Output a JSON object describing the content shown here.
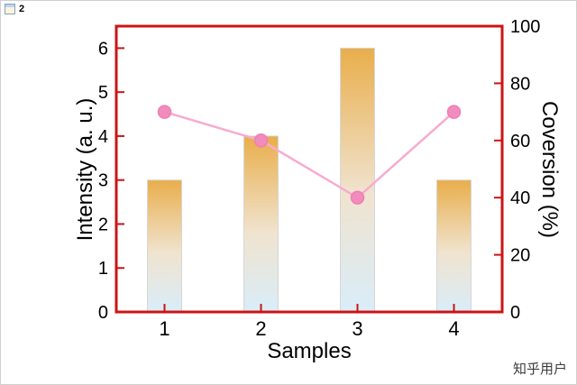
{
  "window": {
    "tab_label": "2"
  },
  "watermark": "知乎用户",
  "chart_data": {
    "type": "combo",
    "categories": [
      "1",
      "2",
      "3",
      "4"
    ],
    "series": [
      {
        "name": "Intensity",
        "type": "bar",
        "axis": "left",
        "values": [
          3,
          4,
          6,
          3
        ]
      },
      {
        "name": "Coversion",
        "type": "line",
        "axis": "right",
        "values": [
          70,
          60,
          40,
          70
        ]
      }
    ],
    "title": "",
    "xlabel": "Samples",
    "ylabel_left": "Intensity (a. u.)",
    "ylabel_right": "Coversion (%)",
    "ylim_left": [
      0,
      6.5
    ],
    "yticks_left": [
      0,
      1,
      2,
      3,
      4,
      5,
      6
    ],
    "ylim_right": [
      0,
      100
    ],
    "yticks_right": [
      0,
      20,
      40,
      60,
      80,
      100
    ],
    "grid": false,
    "legend": "none",
    "colors": {
      "frame": "#cc1414",
      "tick_label": "#000000",
      "bar_gradient_top": "#e9ae4b",
      "bar_gradient_mid": "#f0e3cf",
      "bar_gradient_bottom": "#d9edf9",
      "bar_outline": "#d6d6d6",
      "line": "#f8abd0",
      "marker": "#f28cbd",
      "marker_edge": "#ee7fb3"
    }
  }
}
